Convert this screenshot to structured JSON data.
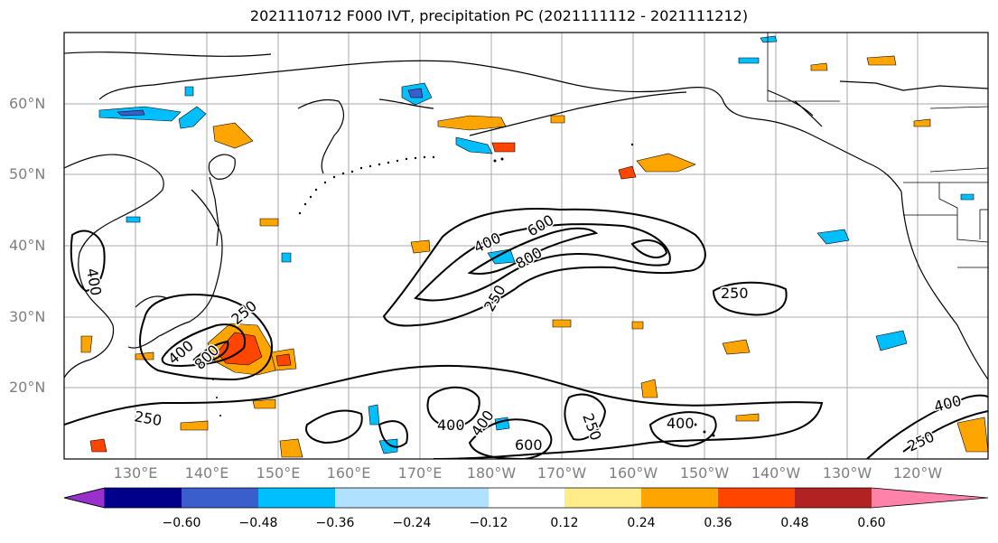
{
  "title": "2021110712 F000 IVT, precipitation PC (2021111112 - 2021111212)",
  "lat_labels": [
    "60°N",
    "50°N",
    "40°N",
    "30°N",
    "20°N"
  ],
  "lon_labels": [
    "130°E",
    "140°E",
    "150°E",
    "160°E",
    "170°E",
    "180°W",
    "170°W",
    "160°W",
    "150°W",
    "140°W",
    "130°W",
    "120°W"
  ],
  "contour_labels": [
    "400",
    "600",
    "800",
    "250",
    "250",
    "400",
    "800",
    "250",
    "400",
    "400",
    "600",
    "400",
    "250",
    "400",
    "250",
    "400",
    "250"
  ],
  "colorbar": {
    "colors": [
      "#9932cc",
      "#00008b",
      "#3a5fcd",
      "#00bfff",
      "#b0e2ff",
      "#ffffff",
      "#ffec8b",
      "#ffa500",
      "#ff4500",
      "#b22222",
      "#ff82ab"
    ],
    "ticks": [
      "−0.60",
      "−0.48",
      "−0.36",
      "−0.24",
      "−0.12",
      "0.12",
      "0.24",
      "0.36",
      "0.48",
      "0.60"
    ]
  }
}
